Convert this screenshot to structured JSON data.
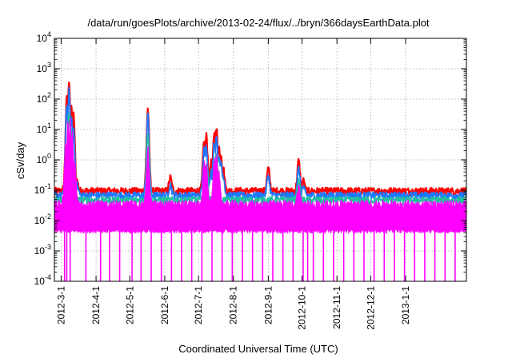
{
  "chart_data": {
    "type": "line",
    "title": "/data/run/goesPlots/archive/2013-02-24/flux/../bryn/366daysEarthData.plot",
    "xlabel": "Coordinated Universal Time (UTC)",
    "ylabel": "cSv/day",
    "yscale": "log",
    "ylim": [
      0.0001,
      10000
    ],
    "xlim": [
      "2012-02-24",
      "2013-02-24"
    ],
    "grid": true,
    "legend": "none",
    "y_ticks": [
      {
        "mantissa": "10",
        "exp": "-4",
        "value": 0.0001
      },
      {
        "mantissa": "10",
        "exp": "-3",
        "value": 0.001
      },
      {
        "mantissa": "10",
        "exp": "-2",
        "value": 0.01
      },
      {
        "mantissa": "10",
        "exp": "-1",
        "value": 0.1
      },
      {
        "mantissa": "10",
        "exp": "0",
        "value": 1
      },
      {
        "mantissa": "10",
        "exp": "1",
        "value": 10
      },
      {
        "mantissa": "10",
        "exp": "2",
        "value": 100
      },
      {
        "mantissa": "10",
        "exp": "3",
        "value": 1000
      },
      {
        "mantissa": "10",
        "exp": "4",
        "value": 10000
      }
    ],
    "x_ticks": [
      {
        "label": "2012-3-1",
        "date": "2012-03-01"
      },
      {
        "label": "2012-4-1",
        "date": "2012-04-01"
      },
      {
        "label": "2012-5-1",
        "date": "2012-05-01"
      },
      {
        "label": "2012-6-1",
        "date": "2012-06-01"
      },
      {
        "label": "2012-7-1",
        "date": "2012-07-01"
      },
      {
        "label": "2012-8-1",
        "date": "2012-08-01"
      },
      {
        "label": "2012-9-1",
        "date": "2012-09-01"
      },
      {
        "label": "2012-10-1",
        "date": "2012-10-01"
      },
      {
        "label": "2012-11-1",
        "date": "2012-11-01"
      },
      {
        "label": "2012-12-1",
        "date": "2012-12-01"
      },
      {
        "label": "2013-1-1",
        "date": "2013-01-01"
      }
    ],
    "series": [
      {
        "color": "#ff0000",
        "baseline": 0.09,
        "points": [
          {
            "x": "2012-03-06",
            "y": 100
          },
          {
            "x": "2012-03-08",
            "y": 420
          },
          {
            "x": "2012-03-10",
            "y": 60
          },
          {
            "x": "2012-03-12",
            "y": 30
          },
          {
            "x": "2012-03-15",
            "y": 0.2
          },
          {
            "x": "2012-05-17",
            "y": 45
          },
          {
            "x": "2012-06-06",
            "y": 0.25
          },
          {
            "x": "2012-07-06",
            "y": 4
          },
          {
            "x": "2012-07-08",
            "y": 6
          },
          {
            "x": "2012-07-12",
            "y": 0.8
          },
          {
            "x": "2012-07-15",
            "y": 8
          },
          {
            "x": "2012-07-17",
            "y": 10
          },
          {
            "x": "2012-07-19",
            "y": 3
          },
          {
            "x": "2012-07-21",
            "y": 1.5
          },
          {
            "x": "2012-07-23",
            "y": 0.5
          },
          {
            "x": "2012-09-01",
            "y": 0.5
          },
          {
            "x": "2012-09-28",
            "y": 0.9
          },
          {
            "x": "2012-10-02",
            "y": 0.2
          }
        ]
      },
      {
        "color": "#1e78ff",
        "baseline": 0.065,
        "points": [
          {
            "x": "2012-03-06",
            "y": 60
          },
          {
            "x": "2012-03-08",
            "y": 200
          },
          {
            "x": "2012-03-10",
            "y": 30
          },
          {
            "x": "2012-03-12",
            "y": 10
          },
          {
            "x": "2012-03-15",
            "y": 0.15
          },
          {
            "x": "2012-05-17",
            "y": 30
          },
          {
            "x": "2012-06-06",
            "y": 0.15
          },
          {
            "x": "2012-07-06",
            "y": 2
          },
          {
            "x": "2012-07-08",
            "y": 3
          },
          {
            "x": "2012-07-12",
            "y": 0.4
          },
          {
            "x": "2012-07-15",
            "y": 4
          },
          {
            "x": "2012-07-17",
            "y": 6
          },
          {
            "x": "2012-07-19",
            "y": 1.5
          },
          {
            "x": "2012-07-21",
            "y": 0.8
          },
          {
            "x": "2012-07-23",
            "y": 0.3
          },
          {
            "x": "2012-09-01",
            "y": 0.3
          },
          {
            "x": "2012-09-28",
            "y": 0.5
          },
          {
            "x": "2012-10-02",
            "y": 0.12
          }
        ]
      },
      {
        "color": "#20c0a0",
        "baseline": 0.045,
        "points": [
          {
            "x": "2012-03-08",
            "y": 40
          },
          {
            "x": "2012-03-10",
            "y": 8
          },
          {
            "x": "2012-05-17",
            "y": 8
          },
          {
            "x": "2012-07-08",
            "y": 0.8
          },
          {
            "x": "2012-07-17",
            "y": 1.5
          },
          {
            "x": "2012-09-28",
            "y": 0.2
          }
        ]
      },
      {
        "color": "#ff00ff",
        "baseline": 0.025,
        "points": [
          {
            "x": "2012-03-05",
            "y": 2
          },
          {
            "x": "2012-03-07",
            "y": 10
          },
          {
            "x": "2012-03-09",
            "y": 15
          },
          {
            "x": "2012-03-11",
            "y": 6
          },
          {
            "x": "2012-03-13",
            "y": 0.5
          },
          {
            "x": "2012-03-16",
            "y": 0.01
          },
          {
            "x": "2012-05-17",
            "y": 2
          },
          {
            "x": "2012-07-06",
            "y": 0.6
          },
          {
            "x": "2012-07-08",
            "y": 0.5
          },
          {
            "x": "2012-07-15",
            "y": 0.8
          },
          {
            "x": "2012-07-17",
            "y": 1
          },
          {
            "x": "2012-07-19",
            "y": 0.3
          },
          {
            "x": "2012-09-28",
            "y": 0.1
          }
        ]
      }
    ]
  }
}
